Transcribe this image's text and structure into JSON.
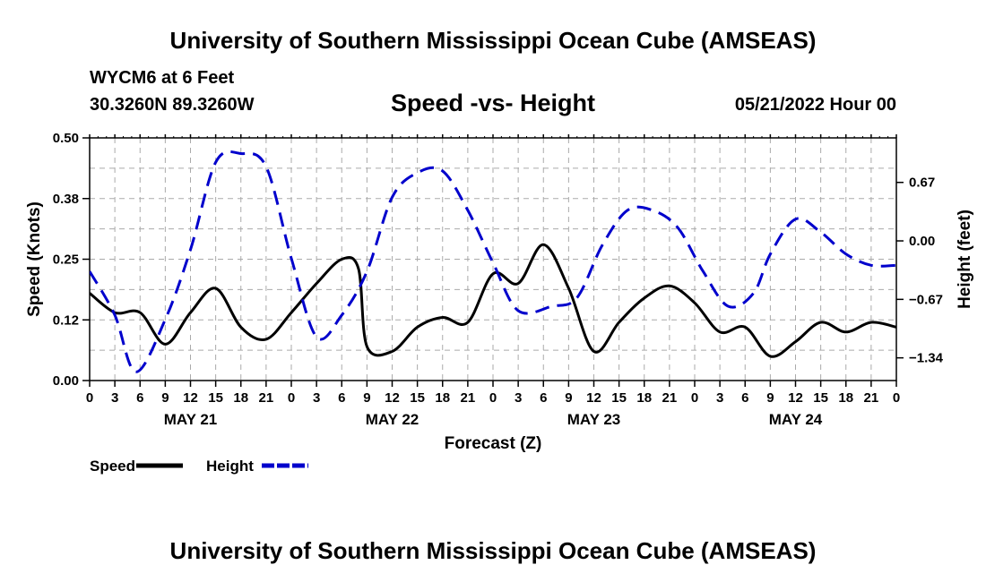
{
  "header": {
    "title_top": "University of Southern Mississippi Ocean Cube (AMSEAS)",
    "title_bottom": "University of Southern Mississippi Ocean Cube (AMSEAS)",
    "station": "WYCM6 at 6 Feet",
    "location": "30.3260N  89.3260W",
    "date": "05/21/2022 Hour 00"
  },
  "chart_data": {
    "type": "line",
    "title": "Speed -vs- Height",
    "xlabel": "Forecast (Z)",
    "ylabel_left": "Speed (Knots)",
    "ylabel_right": "Height (feet)",
    "xlim": [
      0,
      96
    ],
    "ylim_left": [
      0,
      0.5
    ],
    "ylim_right": [
      -1.6,
      1.18
    ],
    "x_tick_labels": [
      "0",
      "3",
      "6",
      "9",
      "12",
      "15",
      "18",
      "21",
      "0",
      "3",
      "6",
      "9",
      "12",
      "15",
      "18",
      "21",
      "0",
      "3",
      "6",
      "9",
      "12",
      "15",
      "18",
      "21",
      "0",
      "3",
      "6",
      "9",
      "12",
      "15",
      "18",
      "21",
      "0"
    ],
    "day_labels": [
      {
        "label": "MAY 21",
        "x": 12
      },
      {
        "label": "MAY 22",
        "x": 36
      },
      {
        "label": "MAY 23",
        "x": 60
      },
      {
        "label": "MAY 24",
        "x": 84
      }
    ],
    "y_left_ticks": [
      "0.00",
      "0.12",
      "0.25",
      "0.38",
      "0.50"
    ],
    "y_left_tick_values": [
      0,
      0.125,
      0.25,
      0.375,
      0.5
    ],
    "y_right_ticks": [
      "0.67",
      "0.00",
      "−0.67",
      "−1.34"
    ],
    "y_right_tick_values": [
      0.67,
      0,
      -0.67,
      -1.34
    ],
    "grid": true,
    "series": [
      {
        "name": "Speed",
        "axis": "left",
        "color": "#000000",
        "dash": "solid",
        "x": [
          0,
          3,
          6,
          9,
          12,
          15,
          18,
          21,
          24,
          27,
          30,
          32,
          33,
          36,
          39,
          42,
          45,
          48,
          51,
          54,
          57,
          60,
          63,
          66,
          69,
          72,
          75,
          78,
          81,
          84,
          87,
          90,
          93,
          96
        ],
        "y": [
          0.18,
          0.14,
          0.14,
          0.075,
          0.14,
          0.19,
          0.11,
          0.085,
          0.14,
          0.2,
          0.25,
          0.23,
          0.07,
          0.06,
          0.11,
          0.13,
          0.12,
          0.22,
          0.2,
          0.28,
          0.19,
          0.06,
          0.12,
          0.17,
          0.195,
          0.16,
          0.1,
          0.11,
          0.05,
          0.08,
          0.12,
          0.1,
          0.12,
          0.11
        ]
      },
      {
        "name": "Height",
        "axis": "right",
        "color": "#0000cc",
        "dash": "dashed",
        "x": [
          0,
          3,
          5.5,
          9,
          12,
          15,
          18,
          21,
          24,
          27,
          30,
          33,
          36,
          39,
          42,
          45,
          48,
          51,
          55,
          58,
          61,
          64,
          67,
          70,
          73,
          76,
          79,
          81,
          84,
          87,
          90,
          93,
          96
        ],
        "y": [
          -0.35,
          -0.85,
          -1.5,
          -0.9,
          -0.1,
          0.9,
          1.0,
          0.85,
          -0.2,
          -1.1,
          -0.85,
          -0.35,
          0.5,
          0.78,
          0.8,
          0.35,
          -0.25,
          -0.8,
          -0.75,
          -0.65,
          -0.05,
          0.35,
          0.35,
          0.15,
          -0.35,
          -0.75,
          -0.6,
          -0.15,
          0.25,
          0.1,
          -0.15,
          -0.28,
          -0.28
        ]
      }
    ],
    "legend": [
      {
        "label": "Speed",
        "color": "#000000",
        "dash": "solid"
      },
      {
        "label": "Height",
        "color": "#0000cc",
        "dash": "dashed"
      }
    ]
  }
}
